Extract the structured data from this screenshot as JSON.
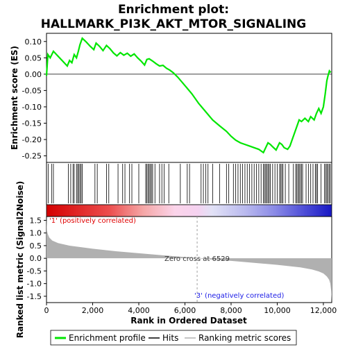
{
  "title_line1": "Enrichment plot:",
  "title_line2": "HALLMARK_PI3K_AKT_MTOR_SIGNALING",
  "colors": {
    "es_line": "#00e600",
    "hits": "#000000",
    "metric_fill": "#b0b0b0",
    "pos_label": "#e00000",
    "neg_label": "#1a1ae6",
    "zero_line": "#a0a0a0"
  },
  "chart_data": [
    {
      "type": "line",
      "name": "enrichment-profile",
      "ylabel": "Enrichment score (ES)",
      "ylim": [
        -0.27,
        0.125
      ],
      "xlim": [
        0,
        12362
      ],
      "yticks": [
        0.1,
        0.05,
        0.0,
        -0.05,
        -0.1,
        -0.15,
        -0.2,
        -0.25
      ],
      "ytick_labels": [
        "0.10",
        "0.05",
        "0.00",
        "-0.05",
        "-0.10",
        "-0.15",
        "-0.20",
        "-0.25"
      ],
      "x": [
        0,
        60,
        160,
        300,
        500,
        700,
        900,
        1000,
        1100,
        1200,
        1300,
        1380,
        1450,
        1550,
        1700,
        1900,
        2050,
        2150,
        2300,
        2450,
        2600,
        2750,
        2900,
        3050,
        3200,
        3350,
        3500,
        3650,
        3800,
        3950,
        4100,
        4250,
        4350,
        4450,
        4600,
        4750,
        4900,
        5050,
        5200,
        5350,
        5500,
        5700,
        6000,
        6300,
        6600,
        6900,
        7200,
        7500,
        7800,
        8000,
        8200,
        8400,
        8600,
        8800,
        9000,
        9200,
        9400,
        9500,
        9600,
        9700,
        9800,
        9950,
        10100,
        10200,
        10300,
        10450,
        10550,
        10650,
        10750,
        10850,
        10950,
        11050,
        11200,
        11350,
        11450,
        11600,
        11700,
        11800,
        11900,
        12000,
        12080,
        12150,
        12200,
        12260,
        12320
      ],
      "y": [
        -0.005,
        0.06,
        0.05,
        0.07,
        0.055,
        0.04,
        0.025,
        0.042,
        0.035,
        0.06,
        0.05,
        0.07,
        0.09,
        0.11,
        0.1,
        0.085,
        0.075,
        0.095,
        0.085,
        0.072,
        0.088,
        0.078,
        0.065,
        0.056,
        0.066,
        0.058,
        0.064,
        0.055,
        0.062,
        0.05,
        0.04,
        0.028,
        0.045,
        0.047,
        0.04,
        0.032,
        0.025,
        0.027,
        0.018,
        0.012,
        0.004,
        -0.01,
        -0.035,
        -0.06,
        -0.09,
        -0.115,
        -0.14,
        -0.158,
        -0.175,
        -0.19,
        -0.202,
        -0.21,
        -0.215,
        -0.22,
        -0.225,
        -0.23,
        -0.24,
        -0.225,
        -0.21,
        -0.215,
        -0.222,
        -0.232,
        -0.21,
        -0.215,
        -0.225,
        -0.23,
        -0.22,
        -0.2,
        -0.18,
        -0.16,
        -0.14,
        -0.145,
        -0.135,
        -0.145,
        -0.13,
        -0.14,
        -0.12,
        -0.105,
        -0.12,
        -0.1,
        -0.06,
        -0.02,
        -0.005,
        0.01,
        0.005
      ]
    },
    {
      "type": "bar",
      "name": "gene-set-hits",
      "ylim": [
        0,
        1
      ],
      "hit_ranks": [
        80,
        220,
        300,
        950,
        1050,
        1150,
        1200,
        1300,
        1350,
        1400,
        1450,
        1500,
        1550,
        2100,
        2200,
        2600,
        2700,
        3100,
        3300,
        3400,
        3600,
        3700,
        4000,
        4300,
        4350,
        4400,
        4450,
        4500,
        4550,
        4600,
        4700,
        4900,
        5000,
        5100,
        5300,
        5800,
        6100,
        6200,
        6700,
        6800,
        6900,
        7000,
        7200,
        7500,
        7800,
        7900,
        8100,
        8200,
        8300,
        8400,
        8500,
        8600,
        8700,
        8800,
        8900,
        9000,
        9100,
        9200,
        9300,
        9400,
        9450,
        9500,
        9550,
        9600,
        9650,
        9700,
        9800,
        9900,
        10000,
        10100,
        10150,
        10200,
        10250,
        10350,
        10500,
        10700,
        10800,
        10850,
        10900,
        10950,
        11000,
        11050,
        11100,
        11250,
        11350,
        11450,
        11550,
        11650,
        11700,
        11750,
        11900,
        12050,
        12100,
        12150,
        12200,
        12250,
        12300
      ]
    },
    {
      "type": "area",
      "name": "ranked-list-metric",
      "ylabel": "Ranked list metric (Signal2Noise)",
      "xlabel": "Rank in Ordered Dataset",
      "ylim": [
        -1.75,
        1.65
      ],
      "xlim": [
        0,
        12362
      ],
      "yticks": [
        1.5,
        1.0,
        0.5,
        0.0,
        -0.5,
        -1.0,
        -1.5
      ],
      "ytick_labels": [
        "1.5",
        "1.0",
        "0.5",
        "0.0",
        "-0.5",
        "-1.0",
        "-1.5"
      ],
      "xticks": [
        0,
        2000,
        4000,
        6000,
        8000,
        10000,
        12000
      ],
      "xtick_labels": [
        "0",
        "2,000",
        "4,000",
        "6,000",
        "8,000",
        "10,000",
        "12,000"
      ],
      "x": [
        0,
        20,
        60,
        120,
        250,
        500,
        1000,
        2000,
        3000,
        4000,
        5000,
        6000,
        6529,
        7000,
        8000,
        9000,
        10000,
        11000,
        11500,
        11800,
        12000,
        12150,
        12250,
        12300,
        12340,
        12362
      ],
      "y": [
        1.65,
        1.1,
        0.95,
        0.82,
        0.7,
        0.6,
        0.5,
        0.38,
        0.28,
        0.2,
        0.12,
        0.05,
        0.0,
        -0.04,
        -0.1,
        -0.18,
        -0.26,
        -0.36,
        -0.44,
        -0.52,
        -0.6,
        -0.72,
        -0.85,
        -1.0,
        -1.3,
        -1.7
      ],
      "zero_cross_rank": 6529
    }
  ],
  "annotations": {
    "zero_cross": "Zero cross at 6529",
    "pos_label": "'1' (positively correlated)",
    "neg_label": "'3' (negatively correlated)"
  },
  "legend": {
    "items": [
      {
        "label": "Enrichment profile"
      },
      {
        "label": "Hits"
      },
      {
        "label": "Ranking metric scores"
      }
    ]
  }
}
